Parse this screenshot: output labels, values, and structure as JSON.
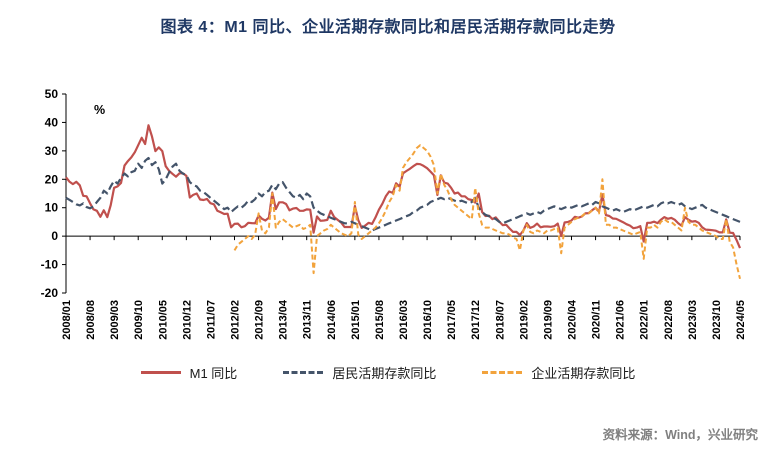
{
  "page": {
    "title": "图表 4：M1 同比、企业活期存款同比和居民活期存款同比走势",
    "source": "资料来源：Wind，兴业研究"
  },
  "chart_data": {
    "type": "line",
    "title": "图表 4：M1 同比、企业活期存款同比和居民活期存款同比走势",
    "unit_label": "%",
    "ylim": [
      -20,
      50
    ],
    "yticks": [
      50,
      40,
      30,
      20,
      10,
      0,
      -10,
      -20
    ],
    "grid": false,
    "legend_position": "bottom",
    "x_frequency": "monthly",
    "x_start": "2008/01",
    "x_end": "2024/05",
    "xtick_step_months": 7,
    "xtick_labels": [
      "2008/01",
      "2008/08",
      "2009/03",
      "2009/10",
      "2010/05",
      "2010/12",
      "2011/07",
      "2012/02",
      "2012/09",
      "2013/04",
      "2013/11",
      "2014/06",
      "2015/01",
      "2015/08",
      "2016/03",
      "2016/10",
      "2017/05",
      "2017/12",
      "2018/07",
      "2019/02",
      "2019/09",
      "2020/04",
      "2020/11",
      "2021/06",
      "2022/01",
      "2022/08",
      "2023/03",
      "2023/10",
      "2024/05"
    ],
    "series": [
      {
        "key": "m1",
        "name": "M1 同比",
        "color": "#C0504D",
        "style": "solid",
        "dash": "",
        "values": [
          20.7,
          19.2,
          18.3,
          19.1,
          17.9,
          14.2,
          14.0,
          11.5,
          9.4,
          8.9,
          6.8,
          9.1,
          6.7,
          10.9,
          17.0,
          17.5,
          18.7,
          24.8,
          26.4,
          27.7,
          29.5,
          32.0,
          34.6,
          32.4,
          39.0,
          35.0,
          29.9,
          31.2,
          29.9,
          24.6,
          22.9,
          21.9,
          20.9,
          22.1,
          22.1,
          21.2,
          13.6,
          14.5,
          15.0,
          12.9,
          12.7,
          13.1,
          11.6,
          11.2,
          8.9,
          8.4,
          7.8,
          7.9,
          3.1,
          4.3,
          4.4,
          3.1,
          3.5,
          4.7,
          4.6,
          4.5,
          7.3,
          6.1,
          5.5,
          6.5,
          15.3,
          9.5,
          11.9,
          11.9,
          11.3,
          9.1,
          9.7,
          9.9,
          8.9,
          8.9,
          9.4,
          9.3,
          1.2,
          6.9,
          5.4,
          5.5,
          5.7,
          8.9,
          6.7,
          5.7,
          4.8,
          3.2,
          3.2,
          3.2,
          10.6,
          5.6,
          2.9,
          3.7,
          4.7,
          4.3,
          6.6,
          9.3,
          11.4,
          14.0,
          15.7,
          15.2,
          18.6,
          17.4,
          22.1,
          22.9,
          23.7,
          24.6,
          25.4,
          25.3,
          24.7,
          23.9,
          22.7,
          21.4,
          14.5,
          21.4,
          18.8,
          18.5,
          17.0,
          15.0,
          15.3,
          14.0,
          14.0,
          13.0,
          12.7,
          11.8,
          15.0,
          8.5,
          7.1,
          7.2,
          6.0,
          6.6,
          5.1,
          3.9,
          4.0,
          2.7,
          1.5,
          1.5,
          0.4,
          2.0,
          4.6,
          2.9,
          3.4,
          4.4,
          3.1,
          3.4,
          3.4,
          3.3,
          3.5,
          4.4,
          0.0,
          4.8,
          5.0,
          5.5,
          6.8,
          6.5,
          6.9,
          8.0,
          8.1,
          9.1,
          10.0,
          8.6,
          14.7,
          7.4,
          7.1,
          6.2,
          6.1,
          5.5,
          4.9,
          4.2,
          3.7,
          2.8,
          3.0,
          3.5,
          -1.9,
          4.7,
          4.7,
          5.1,
          4.6,
          5.8,
          6.7,
          6.1,
          6.4,
          5.8,
          4.6,
          3.7,
          6.7,
          5.8,
          5.1,
          5.3,
          4.7,
          3.1,
          2.3,
          2.2,
          2.1,
          1.9,
          1.3,
          1.3,
          5.9,
          1.2,
          1.1,
          -1.4,
          -4.2
        ]
      },
      {
        "key": "household-demand-deposits",
        "name": "居民活期存款同比",
        "color": "#44546A",
        "style": "dashed",
        "dash": "8 4",
        "values": [
          13.5,
          12.8,
          12.0,
          11.2,
          10.8,
          11.5,
          10.2,
          9.8,
          10.5,
          12.0,
          13.5,
          16.0,
          15.0,
          17.5,
          19.5,
          18.5,
          20.5,
          22.0,
          21.0,
          22.5,
          23.0,
          25.5,
          24.0,
          26.5,
          27.5,
          25.0,
          26.0,
          23.5,
          18.5,
          20.0,
          22.5,
          24.5,
          25.5,
          23.0,
          22.0,
          21.5,
          19.0,
          18.0,
          17.5,
          16.0,
          15.5,
          14.5,
          13.5,
          12.5,
          11.5,
          10.5,
          9.5,
          10.0,
          8.5,
          9.5,
          10.5,
          10.0,
          11.0,
          12.5,
          12.0,
          13.0,
          15.0,
          14.0,
          15.5,
          16.0,
          18.0,
          16.5,
          18.5,
          19.0,
          17.0,
          15.5,
          14.0,
          13.5,
          14.5,
          13.0,
          15.0,
          14.0,
          10.0,
          9.0,
          8.0,
          7.5,
          7.0,
          6.5,
          6.0,
          5.5,
          5.0,
          4.5,
          4.5,
          5.0,
          4.5,
          4.0,
          3.5,
          3.0,
          2.5,
          2.0,
          2.5,
          3.0,
          3.5,
          4.0,
          4.5,
          5.0,
          5.5,
          6.0,
          6.5,
          7.0,
          7.5,
          8.5,
          9.0,
          10.0,
          10.5,
          11.0,
          12.0,
          12.5,
          13.0,
          13.5,
          13.0,
          13.5,
          13.0,
          12.5,
          12.0,
          12.5,
          12.0,
          11.5,
          12.0,
          13.5,
          10.0,
          8.5,
          7.5,
          7.0,
          6.5,
          6.0,
          5.0,
          4.5,
          5.0,
          5.5,
          6.0,
          6.5,
          7.0,
          7.5,
          8.0,
          7.5,
          8.0,
          8.5,
          8.0,
          9.0,
          9.5,
          10.0,
          10.5,
          10.0,
          9.5,
          10.0,
          10.5,
          10.0,
          10.5,
          11.0,
          10.5,
          11.0,
          11.5,
          11.0,
          12.0,
          11.5,
          10.5,
          10.0,
          9.5,
          9.0,
          9.5,
          9.0,
          8.5,
          9.0,
          9.5,
          9.0,
          9.5,
          10.0,
          10.5,
          10.0,
          10.5,
          11.0,
          10.5,
          11.5,
          12.0,
          11.5,
          12.0,
          11.5,
          11.0,
          11.5,
          10.5,
          10.0,
          9.5,
          10.0,
          10.5,
          11.0,
          10.0,
          9.5,
          9.0,
          8.5,
          8.0,
          7.5,
          7.0,
          6.5,
          6.0,
          5.5,
          5.0
        ]
      },
      {
        "key": "corporate-demand-deposits",
        "name": "企业活期存款同比",
        "color": "#F2A33C",
        "style": "dashed",
        "dash": "5 3",
        "values": [
          null,
          null,
          null,
          null,
          null,
          null,
          null,
          null,
          null,
          null,
          null,
          null,
          null,
          null,
          null,
          null,
          null,
          null,
          null,
          null,
          null,
          null,
          null,
          null,
          null,
          null,
          null,
          null,
          null,
          null,
          null,
          null,
          null,
          null,
          null,
          null,
          null,
          null,
          null,
          null,
          null,
          null,
          null,
          null,
          null,
          null,
          null,
          null,
          null,
          -5.0,
          -3.0,
          -2.0,
          -1.0,
          0.0,
          -1.0,
          0.5,
          8.0,
          2.0,
          1.0,
          3.0,
          15.0,
          3.0,
          5.0,
          6.0,
          5.0,
          4.0,
          3.0,
          3.5,
          4.0,
          2.5,
          3.0,
          4.0,
          -13.0,
          0.0,
          1.0,
          2.0,
          2.5,
          4.0,
          3.0,
          2.0,
          1.0,
          0.5,
          0.0,
          1.0,
          12.0,
          0.5,
          -1.0,
          0.0,
          1.0,
          2.0,
          3.0,
          4.5,
          6.5,
          9.0,
          12.0,
          14.0,
          18.0,
          16.0,
          24.0,
          26.0,
          27.5,
          29.0,
          31.0,
          32.0,
          31.0,
          30.0,
          28.0,
          25.0,
          15.0,
          22.0,
          18.0,
          16.0,
          13.0,
          11.0,
          10.0,
          9.0,
          8.0,
          7.0,
          6.0,
          17.0,
          8.0,
          4.0,
          3.0,
          3.0,
          2.5,
          2.0,
          1.5,
          1.0,
          1.0,
          0.5,
          -0.5,
          -1.0,
          -5.0,
          2.0,
          4.0,
          1.5,
          1.0,
          2.0,
          1.5,
          1.0,
          2.0,
          2.0,
          2.5,
          3.0,
          -6.0,
          3.0,
          4.0,
          5.0,
          6.0,
          6.5,
          7.0,
          8.0,
          8.0,
          9.0,
          10.0,
          8.0,
          20.0,
          4.0,
          4.0,
          3.0,
          3.0,
          2.5,
          2.0,
          1.5,
          1.0,
          0.5,
          1.0,
          1.5,
          -8.0,
          3.0,
          3.0,
          4.0,
          3.0,
          5.0,
          6.0,
          5.0,
          5.0,
          4.0,
          3.0,
          2.0,
          10.0,
          5.0,
          4.0,
          4.0,
          3.0,
          2.0,
          1.5,
          1.0,
          0.5,
          0.0,
          -1.0,
          -1.0,
          6.0,
          -2.0,
          -4.0,
          -10.0,
          -15.0
        ]
      }
    ]
  }
}
